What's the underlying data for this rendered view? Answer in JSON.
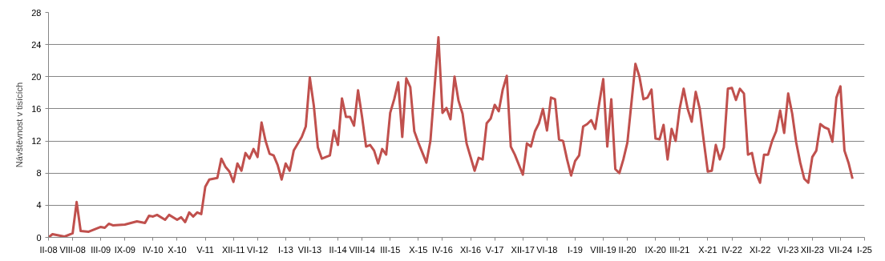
{
  "chart_data": {
    "type": "line",
    "ylabel": "Návštěvnost v tisících",
    "x": [
      "2008-02",
      "2008-03",
      "2008-06",
      "2008-08",
      "2008-09",
      "2008-10",
      "2008-12",
      "2009-03",
      "2009-04",
      "2009-05",
      "2009-06",
      "2009-09",
      "2009-12",
      "2010-02",
      "2010-03",
      "2010-04",
      "2010-05",
      "2010-07",
      "2010-08",
      "2010-10",
      "2010-11",
      "2010-12",
      "2011-01",
      "2011-02",
      "2011-03",
      "2011-04",
      "2011-05",
      "2011-06",
      "2011-08",
      "2011-09",
      "2011-10",
      "2011-11",
      "2011-12",
      "2012-01",
      "2012-02",
      "2012-03",
      "2012-04",
      "2012-05",
      "2012-06",
      "2012-07",
      "2012-08",
      "2012-09",
      "2012-10",
      "2012-11",
      "2012-12",
      "2013-01",
      "2013-02",
      "2013-03",
      "2013-05",
      "2013-06",
      "2013-07",
      "2013-08",
      "2013-09",
      "2013-10",
      "2013-12",
      "2014-01",
      "2014-02",
      "2014-03",
      "2014-04",
      "2014-05",
      "2014-06",
      "2014-07",
      "2014-08",
      "2014-09",
      "2014-10",
      "2014-11",
      "2014-12",
      "2015-01",
      "2015-02",
      "2015-03",
      "2015-04",
      "2015-05",
      "2015-06",
      "2015-07",
      "2015-08",
      "2015-09",
      "2015-10",
      "2015-12",
      "2016-01",
      "2016-03",
      "2016-04",
      "2016-05",
      "2016-06",
      "2016-07",
      "2016-08",
      "2016-09",
      "2016-10",
      "2016-12",
      "2017-01",
      "2017-02",
      "2017-03",
      "2017-04",
      "2017-05",
      "2017-06",
      "2017-07",
      "2017-08",
      "2017-09",
      "2017-10",
      "2017-12",
      "2018-01",
      "2018-02",
      "2018-03",
      "2018-04",
      "2018-05",
      "2018-06",
      "2018-07",
      "2018-08",
      "2018-09",
      "2018-10",
      "2018-11",
      "2018-12",
      "2019-01",
      "2019-02",
      "2019-03",
      "2019-04",
      "2019-05",
      "2019-06",
      "2019-07",
      "2019-08",
      "2019-09",
      "2019-10",
      "2019-11",
      "2019-12",
      "2020-01",
      "2020-02",
      "2020-04",
      "2020-05",
      "2020-06",
      "2020-07",
      "2020-08",
      "2020-09",
      "2020-10",
      "2020-11",
      "2020-12",
      "2021-01",
      "2021-02",
      "2021-03",
      "2021-04",
      "2021-05",
      "2021-06",
      "2021-07",
      "2021-08",
      "2021-09",
      "2021-10",
      "2021-11",
      "2021-12",
      "2022-01",
      "2022-02",
      "2022-03",
      "2022-04",
      "2022-05",
      "2022-06",
      "2022-07",
      "2022-08",
      "2022-09",
      "2022-10",
      "2022-11",
      "2022-12",
      "2023-01",
      "2023-02",
      "2023-03",
      "2023-04",
      "2023-05",
      "2023-06",
      "2023-07",
      "2023-08",
      "2023-09",
      "2023-10",
      "2023-11",
      "2023-12",
      "2024-01",
      "2024-02",
      "2024-03",
      "2024-04",
      "2024-05",
      "2024-06",
      "2024-07",
      "2024-08",
      "2024-09",
      "2024-10"
    ],
    "series": [
      {
        "color": "#c0504d",
        "values": [
          0.0,
          0.4,
          0.1,
          0.5,
          4.4,
          0.8,
          0.7,
          1.3,
          1.2,
          1.7,
          1.5,
          1.6,
          2.0,
          1.8,
          2.7,
          2.6,
          2.8,
          2.2,
          2.8,
          2.2,
          2.5,
          1.9,
          3.1,
          2.6,
          3.1,
          2.9,
          6.3,
          7.2,
          7.4,
          9.8,
          8.8,
          8.2,
          6.9,
          9.2,
          8.3,
          10.5,
          9.8,
          11.0,
          10.0,
          14.3,
          12.0,
          10.4,
          10.2,
          9.0,
          7.2,
          9.2,
          8.3,
          10.8,
          12.5,
          13.8,
          19.9,
          16.4,
          11.2,
          9.8,
          10.2,
          13.3,
          11.5,
          17.3,
          15.0,
          15.0,
          13.9,
          18.3,
          15.0,
          11.3,
          11.5,
          10.8,
          9.2,
          11.0,
          10.3,
          15.5,
          17.2,
          19.3,
          12.5,
          19.8,
          18.7,
          13.2,
          11.8,
          9.3,
          12.0,
          24.9,
          15.5,
          16.1,
          14.7,
          20.0,
          17.0,
          15.4,
          11.7,
          8.3,
          9.9,
          9.7,
          14.2,
          14.8,
          16.5,
          15.7,
          18.4,
          20.1,
          11.3,
          10.3,
          7.8,
          11.7,
          11.3,
          13.2,
          14.2,
          16.0,
          13.3,
          17.4,
          17.2,
          12.2,
          12.0,
          9.7,
          7.7,
          9.5,
          10.2,
          13.8,
          14.1,
          14.6,
          13.5,
          16.7,
          19.7,
          11.3,
          17.2,
          8.5,
          8.0,
          9.7,
          11.8,
          21.6,
          20.0,
          17.2,
          17.4,
          18.4,
          12.3,
          12.2,
          14.0,
          9.7,
          13.5,
          12.0,
          16.0,
          18.5,
          16.0,
          14.4,
          18.1,
          16.0,
          12.0,
          8.2,
          8.3,
          11.5,
          9.7,
          11.2,
          18.5,
          18.6,
          17.1,
          18.5,
          17.9,
          10.3,
          10.5,
          8.0,
          6.8,
          10.3,
          10.3,
          12.0,
          13.2,
          15.8,
          13.0,
          17.9,
          15.4,
          11.8,
          9.3,
          7.3,
          6.8,
          10.0,
          10.8,
          14.1,
          13.7,
          13.5,
          11.9,
          17.4,
          18.8,
          10.8,
          9.3,
          7.3
        ]
      }
    ],
    "xlim": [
      "2008-02",
      "2025-01"
    ],
    "xticks": [
      {
        "value": "2008-02",
        "label": "II-08"
      },
      {
        "value": "2008-08",
        "label": "VIII-08"
      },
      {
        "value": "2009-03",
        "label": "III-09"
      },
      {
        "value": "2009-09",
        "label": "IX-09"
      },
      {
        "value": "2010-04",
        "label": "IV-10"
      },
      {
        "value": "2010-10",
        "label": "X-10"
      },
      {
        "value": "2011-05",
        "label": "V-11"
      },
      {
        "value": "2011-12",
        "label": "XII-11"
      },
      {
        "value": "2012-06",
        "label": "VI-12"
      },
      {
        "value": "2013-01",
        "label": "I-13"
      },
      {
        "value": "2013-07",
        "label": "VII-13"
      },
      {
        "value": "2014-02",
        "label": "II-14"
      },
      {
        "value": "2014-08",
        "label": "VIII-14"
      },
      {
        "value": "2015-03",
        "label": "III-15"
      },
      {
        "value": "2015-10",
        "label": "X-15"
      },
      {
        "value": "2016-04",
        "label": "IV-16"
      },
      {
        "value": "2016-11",
        "label": "XI-16"
      },
      {
        "value": "2017-05",
        "label": "V-17"
      },
      {
        "value": "2017-12",
        "label": "XII-17"
      },
      {
        "value": "2018-06",
        "label": "VI-18"
      },
      {
        "value": "2019-01",
        "label": "I-19"
      },
      {
        "value": "2019-08",
        "label": "VIII-19"
      },
      {
        "value": "2020-02",
        "label": "II-20"
      },
      {
        "value": "2020-09",
        "label": "IX-20"
      },
      {
        "value": "2021-03",
        "label": "III-21"
      },
      {
        "value": "2021-10",
        "label": "X-21"
      },
      {
        "value": "2022-04",
        "label": "IV-22"
      },
      {
        "value": "2022-11",
        "label": "XI-22"
      },
      {
        "value": "2023-06",
        "label": "VI-23"
      },
      {
        "value": "2023-12",
        "label": "XII-23"
      },
      {
        "value": "2024-07",
        "label": "VII-24"
      },
      {
        "value": "2025-01",
        "label": "I-25"
      }
    ],
    "ylim": [
      0,
      28
    ],
    "yticks": [
      0,
      4,
      8,
      12,
      16,
      20,
      24,
      28
    ],
    "grid": "y",
    "line_style": "solid",
    "marker": "none"
  }
}
